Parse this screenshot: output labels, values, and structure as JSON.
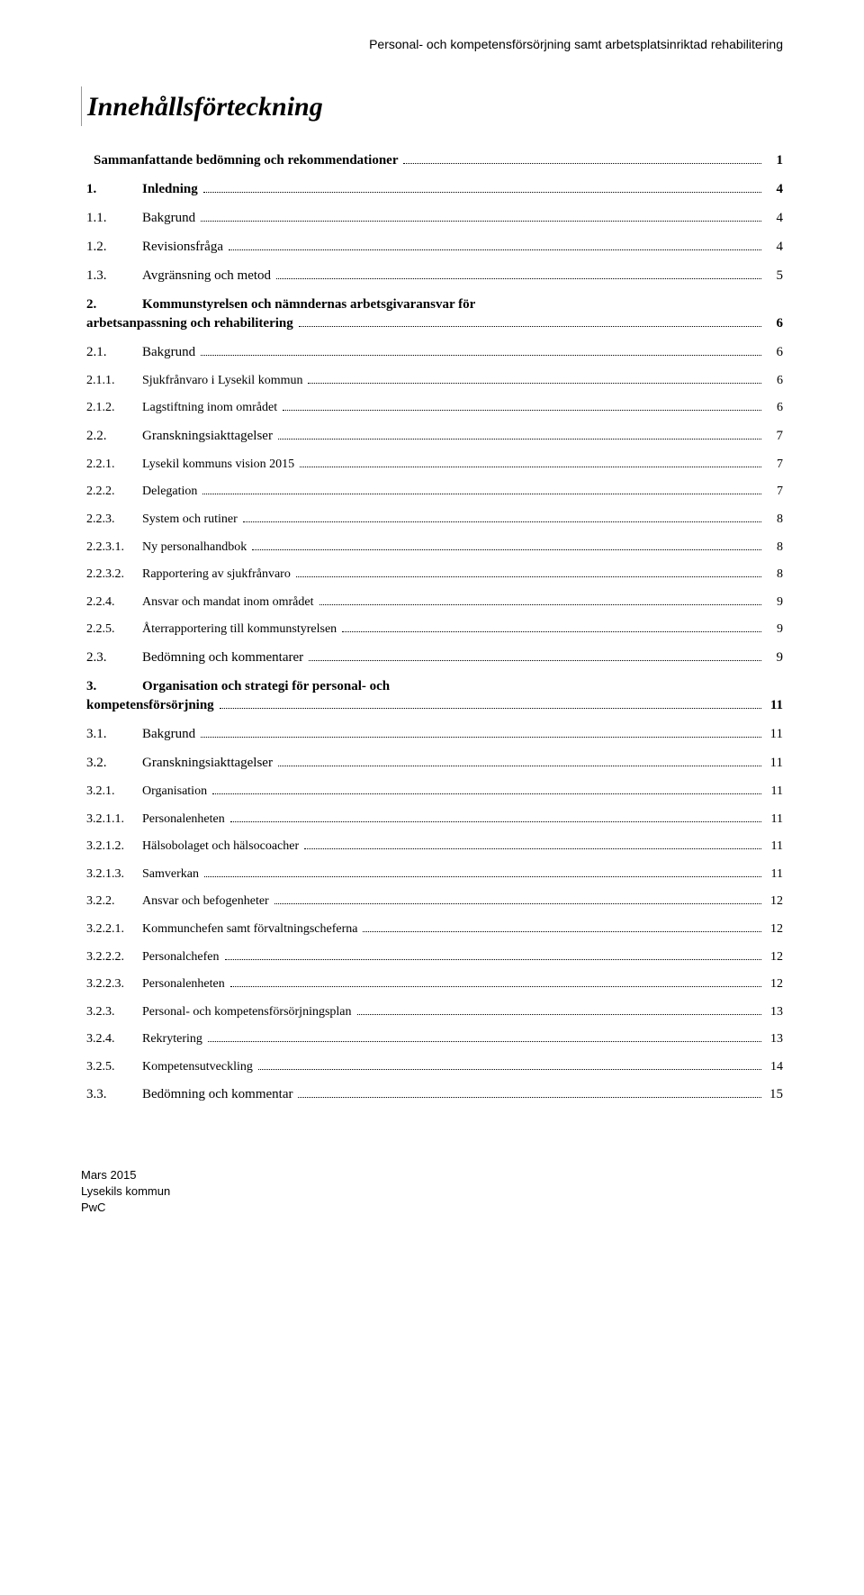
{
  "header": "Personal- och kompetensförsörjning samt arbetsplatsinriktad rehabilitering",
  "title": "Innehållsförteckning",
  "toc": [
    {
      "type": "row",
      "bold": true,
      "num": "",
      "label": "Sammanfattande bedömning och rekommendationer",
      "page": "1"
    },
    {
      "type": "row",
      "bold": true,
      "num": "1.",
      "label": "Inledning",
      "page": "4"
    },
    {
      "type": "row",
      "bold": false,
      "num": "1.1.",
      "label": "Bakgrund",
      "page": "4"
    },
    {
      "type": "row",
      "bold": false,
      "num": "1.2.",
      "label": "Revisionsfråga",
      "page": "4"
    },
    {
      "type": "row",
      "bold": false,
      "num": "1.3.",
      "label": "Avgränsning och metod",
      "page": "5"
    },
    {
      "type": "multi",
      "bold": true,
      "num": "2.",
      "label1": "Kommunstyrelsen och nämndernas arbetsgivaransvar för",
      "label2": "arbetsanpassning och rehabilitering",
      "page": "6"
    },
    {
      "type": "row",
      "bold": false,
      "num": "2.1.",
      "label": "Bakgrund",
      "page": "6"
    },
    {
      "type": "row",
      "bold": false,
      "lvl": 3,
      "num": "2.1.1.",
      "label": "Sjukfrånvaro i Lysekil kommun",
      "page": "6"
    },
    {
      "type": "row",
      "bold": false,
      "lvl": 3,
      "num": "2.1.2.",
      "label": "Lagstiftning inom området",
      "page": "6"
    },
    {
      "type": "row",
      "bold": false,
      "num": "2.2.",
      "label": "Granskningsiakttagelser",
      "page": "7"
    },
    {
      "type": "row",
      "bold": false,
      "lvl": 3,
      "num": "2.2.1.",
      "label": "Lysekil kommuns vision 2015",
      "page": "7"
    },
    {
      "type": "row",
      "bold": false,
      "lvl": 3,
      "num": "2.2.2.",
      "label": "Delegation",
      "page": "7"
    },
    {
      "type": "row",
      "bold": false,
      "lvl": 3,
      "num": "2.2.3.",
      "label": "System och rutiner",
      "page": "8"
    },
    {
      "type": "row",
      "bold": false,
      "lvl": 3,
      "num": "2.2.3.1.",
      "label": "Ny personalhandbok",
      "page": "8"
    },
    {
      "type": "row",
      "bold": false,
      "lvl": 3,
      "num": "2.2.3.2.",
      "label": "Rapportering av sjukfrånvaro",
      "page": "8"
    },
    {
      "type": "row",
      "bold": false,
      "lvl": 3,
      "num": "2.2.4.",
      "label": "Ansvar och mandat inom området",
      "page": "9"
    },
    {
      "type": "row",
      "bold": false,
      "lvl": 3,
      "num": "2.2.5.",
      "label": "Återrapportering till kommunstyrelsen",
      "page": "9"
    },
    {
      "type": "row",
      "bold": false,
      "num": "2.3.",
      "label": "Bedömning och kommentarer",
      "page": "9"
    },
    {
      "type": "multi",
      "bold": true,
      "num": "3.",
      "label1": "Organisation och strategi för personal- och",
      "label2": "kompetensförsörjning",
      "page": "11"
    },
    {
      "type": "row",
      "bold": false,
      "num": "3.1.",
      "label": "Bakgrund",
      "page": "11"
    },
    {
      "type": "row",
      "bold": false,
      "num": "3.2.",
      "label": "Granskningsiakttagelser",
      "page": "11"
    },
    {
      "type": "row",
      "bold": false,
      "lvl": 3,
      "num": "3.2.1.",
      "label": "Organisation",
      "page": "11"
    },
    {
      "type": "row",
      "bold": false,
      "lvl": 3,
      "num": "3.2.1.1.",
      "label": "Personalenheten",
      "page": "11"
    },
    {
      "type": "row",
      "bold": false,
      "lvl": 3,
      "num": "3.2.1.2.",
      "label": "Hälsobolaget och hälsocoacher",
      "page": "11"
    },
    {
      "type": "row",
      "bold": false,
      "lvl": 3,
      "num": "3.2.1.3.",
      "label": "Samverkan",
      "page": "11"
    },
    {
      "type": "row",
      "bold": false,
      "lvl": 3,
      "num": "3.2.2.",
      "label": "Ansvar och befogenheter",
      "page": "12"
    },
    {
      "type": "row",
      "bold": false,
      "lvl": 3,
      "num": "3.2.2.1.",
      "label": "Kommunchefen samt förvaltningscheferna",
      "page": "12"
    },
    {
      "type": "row",
      "bold": false,
      "lvl": 3,
      "num": "3.2.2.2.",
      "label": "Personalchefen",
      "page": "12"
    },
    {
      "type": "row",
      "bold": false,
      "lvl": 3,
      "num": "3.2.2.3.",
      "label": "Personalenheten",
      "page": "12"
    },
    {
      "type": "row",
      "bold": false,
      "lvl": 3,
      "num": "3.2.3.",
      "label": "Personal- och kompetensförsörjningsplan",
      "page": "13"
    },
    {
      "type": "row",
      "bold": false,
      "lvl": 3,
      "num": "3.2.4.",
      "label": "Rekrytering",
      "page": "13"
    },
    {
      "type": "row",
      "bold": false,
      "lvl": 3,
      "num": "3.2.5.",
      "label": "Kompetensutveckling",
      "page": "14"
    },
    {
      "type": "row",
      "bold": false,
      "num": "3.3.",
      "label": "Bedömning och kommentar",
      "page": "15"
    }
  ],
  "footer": {
    "line1": "Mars 2015",
    "line2": "Lysekils kommun",
    "line3": "PwC"
  }
}
